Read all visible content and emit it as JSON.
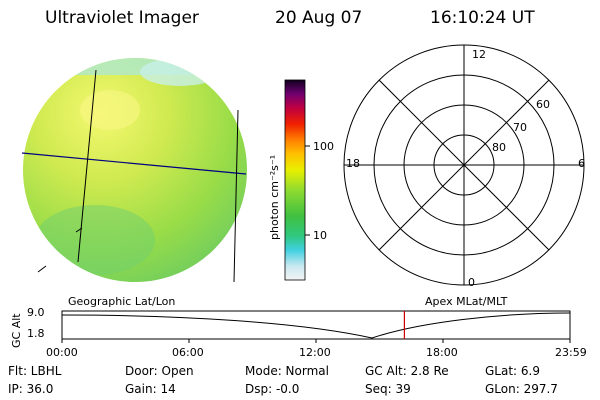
{
  "header": {
    "title": "Ultraviolet Imager",
    "date": "20 Aug 07",
    "time": "16:10:24 UT"
  },
  "colorbar": {
    "unit_label": "photon cm⁻²s⁻¹",
    "tick_100": "100",
    "tick_10": "10"
  },
  "polar": {
    "mlt_top": "12",
    "mlt_left": "18",
    "mlt_right": "6",
    "mlt_bottom": "0",
    "lat_60": "60",
    "lat_70": "70",
    "lat_80": "80"
  },
  "timeline": {
    "left_title": "Geographic Lat/Lon",
    "right_title": "Apex  MLat/MLT",
    "y_label": "GC Alt",
    "y_top": "9.0",
    "y_bottom": "1.8",
    "x_ticks": [
      "00:00",
      "06:00",
      "12:00",
      "18:00",
      "23:59"
    ],
    "current_fraction": 0.674
  },
  "status": {
    "filter": "Flt: LBHL",
    "ip": "IP: 36.0",
    "door": "Door: Open",
    "gain": "Gain: 14",
    "mode": "Mode: Normal",
    "dsp": "Dsp:   -0.0",
    "gc_alt": "GC Alt: 2.8 Re",
    "seq": "Seq: 39",
    "glat": "GLat:   6.9",
    "glon": "GLon: 297.7"
  },
  "colors": {
    "red_marker": "#d00000"
  }
}
